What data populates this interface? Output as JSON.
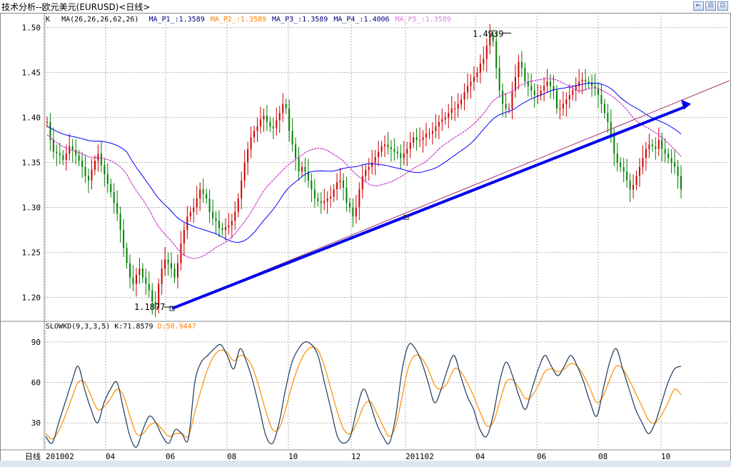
{
  "window": {
    "title": "技术分析--欧元美元(EURUSD)<日线>"
  },
  "main_legend": {
    "k": "K",
    "ma_params": "MA(26,26,26,62,26)",
    "items": [
      {
        "label": "MA_P1_:1.3589",
        "color": "#000080"
      },
      {
        "label": "MA_P2_:1.3589",
        "color": "#ff8000"
      },
      {
        "label": "MA_P3_:1.3589",
        "color": "#000080"
      },
      {
        "label": "MA_P4_:1.4006",
        "color": "#000080"
      },
      {
        "label": "MA_P5_:1.3589",
        "color": "#e080e0"
      }
    ]
  },
  "sub_legend": {
    "name": "SLOWKD(9,3,3,5)",
    "k": "K:71.8579",
    "d": "D:50.9447",
    "k_color": "#000000",
    "d_color": "#ff8000"
  },
  "annotations": {
    "high": "1.4939",
    "low": "1.1877"
  },
  "x_axis_label": "日线",
  "colors": {
    "up": "#cc0000",
    "down": "#008000",
    "ma_blue": "#0000ff",
    "ma_pink": "#cc33cc",
    "trend": "#0000ee",
    "grid": "#b0b0b0",
    "slow_k": "#1a3a5c",
    "slow_d": "#ff8c00"
  },
  "chart_data": [
    {
      "type": "candlestick",
      "title": "技术分析--欧元美元(EURUSD)<日线>",
      "ylim": [
        1.175,
        1.51
      ],
      "y_ticks": [
        "1.50",
        "1.45",
        "1.40",
        "1.35",
        "1.30",
        "1.25",
        "1.20"
      ],
      "x_ticks": [
        "201002",
        "04",
        "06",
        "08",
        "10",
        "12",
        "201102",
        "04",
        "06",
        "08",
        "10"
      ],
      "close": [
        1.395,
        1.375,
        1.362,
        1.36,
        1.358,
        1.353,
        1.36,
        1.368,
        1.364,
        1.358,
        1.352,
        1.345,
        1.335,
        1.33,
        1.342,
        1.352,
        1.36,
        1.347,
        1.337,
        1.326,
        1.317,
        1.305,
        1.293,
        1.275,
        1.255,
        1.238,
        1.222,
        1.215,
        1.225,
        1.232,
        1.222,
        1.215,
        1.208,
        1.195,
        1.188,
        1.215,
        1.232,
        1.242,
        1.238,
        1.232,
        1.222,
        1.238,
        1.26,
        1.275,
        1.29,
        1.295,
        1.3,
        1.31,
        1.32,
        1.315,
        1.31,
        1.295,
        1.288,
        1.285,
        1.277,
        1.275,
        1.278,
        1.28,
        1.285,
        1.295,
        1.31,
        1.33,
        1.35,
        1.365,
        1.378,
        1.385,
        1.39,
        1.398,
        1.402,
        1.395,
        1.39,
        1.388,
        1.397,
        1.405,
        1.415,
        1.41,
        1.385,
        1.37,
        1.355,
        1.34,
        1.345,
        1.34,
        1.33,
        1.32,
        1.31,
        1.307,
        1.305,
        1.307,
        1.31,
        1.312,
        1.32,
        1.328,
        1.33,
        1.322,
        1.305,
        1.3,
        1.29,
        1.3,
        1.32,
        1.335,
        1.342,
        1.345,
        1.35,
        1.356,
        1.362,
        1.368,
        1.37,
        1.367,
        1.365,
        1.362,
        1.36,
        1.355,
        1.36,
        1.365,
        1.372,
        1.378,
        1.375,
        1.375,
        1.378,
        1.382,
        1.382,
        1.385,
        1.39,
        1.395,
        1.398,
        1.4,
        1.405,
        1.41,
        1.41,
        1.415,
        1.42,
        1.428,
        1.435,
        1.44,
        1.445,
        1.45,
        1.46,
        1.465,
        1.48,
        1.492,
        1.485,
        1.455,
        1.43,
        1.415,
        1.41,
        1.41,
        1.43,
        1.445,
        1.462,
        1.455,
        1.44,
        1.435,
        1.43,
        1.425,
        1.425,
        1.43,
        1.435,
        1.44,
        1.435,
        1.43,
        1.41,
        1.41,
        1.415,
        1.42,
        1.425,
        1.43,
        1.435,
        1.44,
        1.442,
        1.44,
        1.438,
        1.435,
        1.432,
        1.425,
        1.415,
        1.405,
        1.395,
        1.38,
        1.36,
        1.35,
        1.345,
        1.34,
        1.33,
        1.32,
        1.325,
        1.335,
        1.345,
        1.355,
        1.365,
        1.37,
        1.368,
        1.365,
        1.375,
        1.365,
        1.36,
        1.355,
        1.35,
        1.345,
        1.335,
        1.32
      ],
      "series": [
        {
          "name": "MA_P1_",
          "values": []
        },
        {
          "name": "MA_P4_",
          "values": []
        }
      ],
      "trendline": {
        "start": {
          "x": "201006",
          "y": 1.1877
        },
        "end": {
          "x": "201110",
          "y": 1.41
        },
        "extended_to": 1.44
      }
    },
    {
      "type": "line",
      "title": "SLOWKD(9,3,3,5)",
      "ylim": [
        10,
        100
      ],
      "y_ticks": [
        "90",
        "60",
        "30"
      ],
      "series": [
        {
          "name": "K",
          "values": [
            20,
            15,
            30,
            45,
            60,
            72,
            55,
            40,
            30,
            45,
            55,
            60,
            40,
            20,
            12,
            25,
            35,
            30,
            20,
            15,
            25,
            22,
            18,
            60,
            75,
            80,
            85,
            88,
            80,
            70,
            85,
            75,
            60,
            40,
            20,
            15,
            30,
            55,
            75,
            85,
            90,
            88,
            80,
            60,
            40,
            20,
            15,
            20,
            40,
            55,
            45,
            30,
            20,
            15,
            35,
            70,
            88,
            85,
            75,
            60,
            45,
            55,
            70,
            80,
            65,
            50,
            40,
            25,
            20,
            35,
            60,
            75,
            65,
            50,
            40,
            55,
            70,
            80,
            72,
            65,
            72,
            80,
            72,
            60,
            45,
            35,
            55,
            75,
            85,
            70,
            55,
            40,
            30,
            22,
            30,
            45,
            60,
            70,
            72
          ]
        },
        {
          "name": "D",
          "values": [
            22,
            18,
            24,
            35,
            48,
            60,
            60,
            50,
            40,
            42,
            48,
            55,
            50,
            35,
            22,
            22,
            28,
            30,
            25,
            20,
            22,
            22,
            20,
            38,
            55,
            70,
            80,
            84,
            82,
            76,
            80,
            78,
            70,
            55,
            38,
            25,
            26,
            40,
            58,
            72,
            82,
            86,
            84,
            72,
            55,
            38,
            25,
            22,
            30,
            42,
            46,
            38,
            28,
            20,
            28,
            50,
            72,
            80,
            78,
            70,
            58,
            55,
            60,
            70,
            68,
            60,
            50,
            38,
            28,
            30,
            45,
            60,
            62,
            56,
            48,
            50,
            58,
            68,
            70,
            68,
            70,
            74,
            72,
            65,
            55,
            45,
            50,
            62,
            72,
            70,
            62,
            52,
            42,
            32,
            30,
            36,
            45,
            55,
            51
          ]
        }
      ]
    }
  ]
}
